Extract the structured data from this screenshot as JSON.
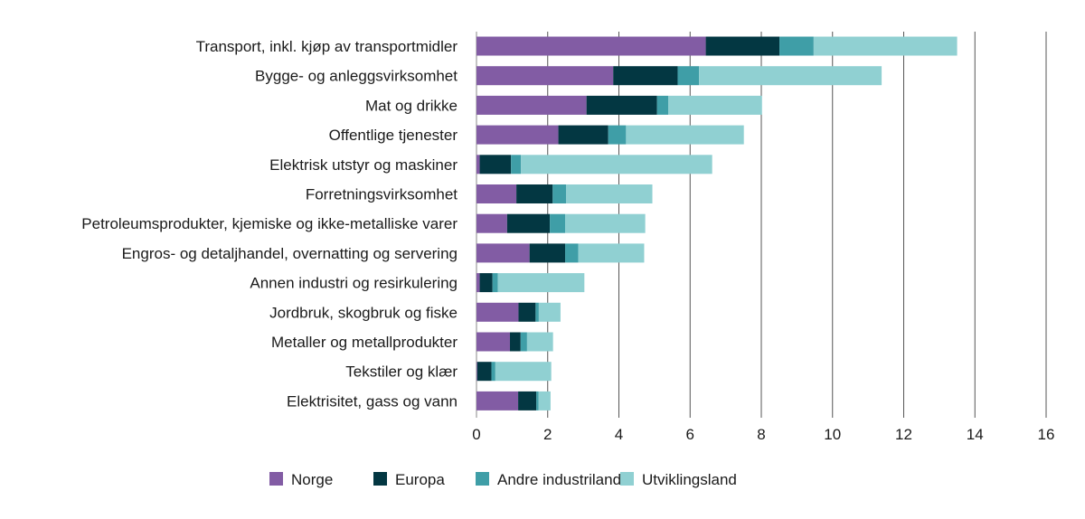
{
  "chart_data": {
    "type": "bar",
    "orientation": "horizontal",
    "stacked": true,
    "title": "",
    "xlabel": "",
    "ylabel": "",
    "xlim": [
      0,
      16
    ],
    "xticks": [
      0,
      2,
      4,
      6,
      8,
      10,
      12,
      14,
      16
    ],
    "grid": true,
    "legend_position": "bottom",
    "categories": [
      "Transport, inkl. kjøp av transportmidler",
      "Bygge- og anleggsvirksomhet",
      "Mat og drikke",
      "Offentlige tjenester",
      "Elektrisk utstyr og maskiner",
      "Forretningsvirksomhet",
      "Petroleumsprodukter, kjemiske og ikke-metalliske varer",
      "Engros- og detaljhandel, overnatting og servering",
      "Annen industri og resirkulering",
      "Jordbruk, skogbruk og fiske",
      "Metaller og metallprodukter",
      "Tekstiler og klær",
      "Elektrisitet, gass og vann"
    ],
    "series": [
      {
        "name": "Norge",
        "color": "#825ca4",
        "values": [
          6.44,
          3.84,
          3.09,
          2.3,
          0.09,
          1.12,
          0.86,
          1.49,
          0.09,
          1.18,
          0.94,
          0.02,
          1.17
        ]
      },
      {
        "name": "Europa",
        "color": "#033742",
        "values": [
          2.07,
          1.81,
          1.98,
          1.4,
          0.88,
          1.02,
          1.2,
          1.0,
          0.36,
          0.48,
          0.3,
          0.4,
          0.51
        ]
      },
      {
        "name": "Andre industriland",
        "color": "#3f9ea7",
        "values": [
          0.96,
          0.6,
          0.32,
          0.5,
          0.28,
          0.38,
          0.43,
          0.37,
          0.15,
          0.09,
          0.18,
          0.11,
          0.06
        ]
      },
      {
        "name": "Utviklingsland",
        "color": "#90d0d2",
        "values": [
          4.03,
          5.13,
          2.63,
          3.31,
          5.37,
          2.42,
          2.25,
          1.85,
          2.43,
          0.61,
          0.73,
          1.57,
          0.34
        ]
      }
    ]
  }
}
